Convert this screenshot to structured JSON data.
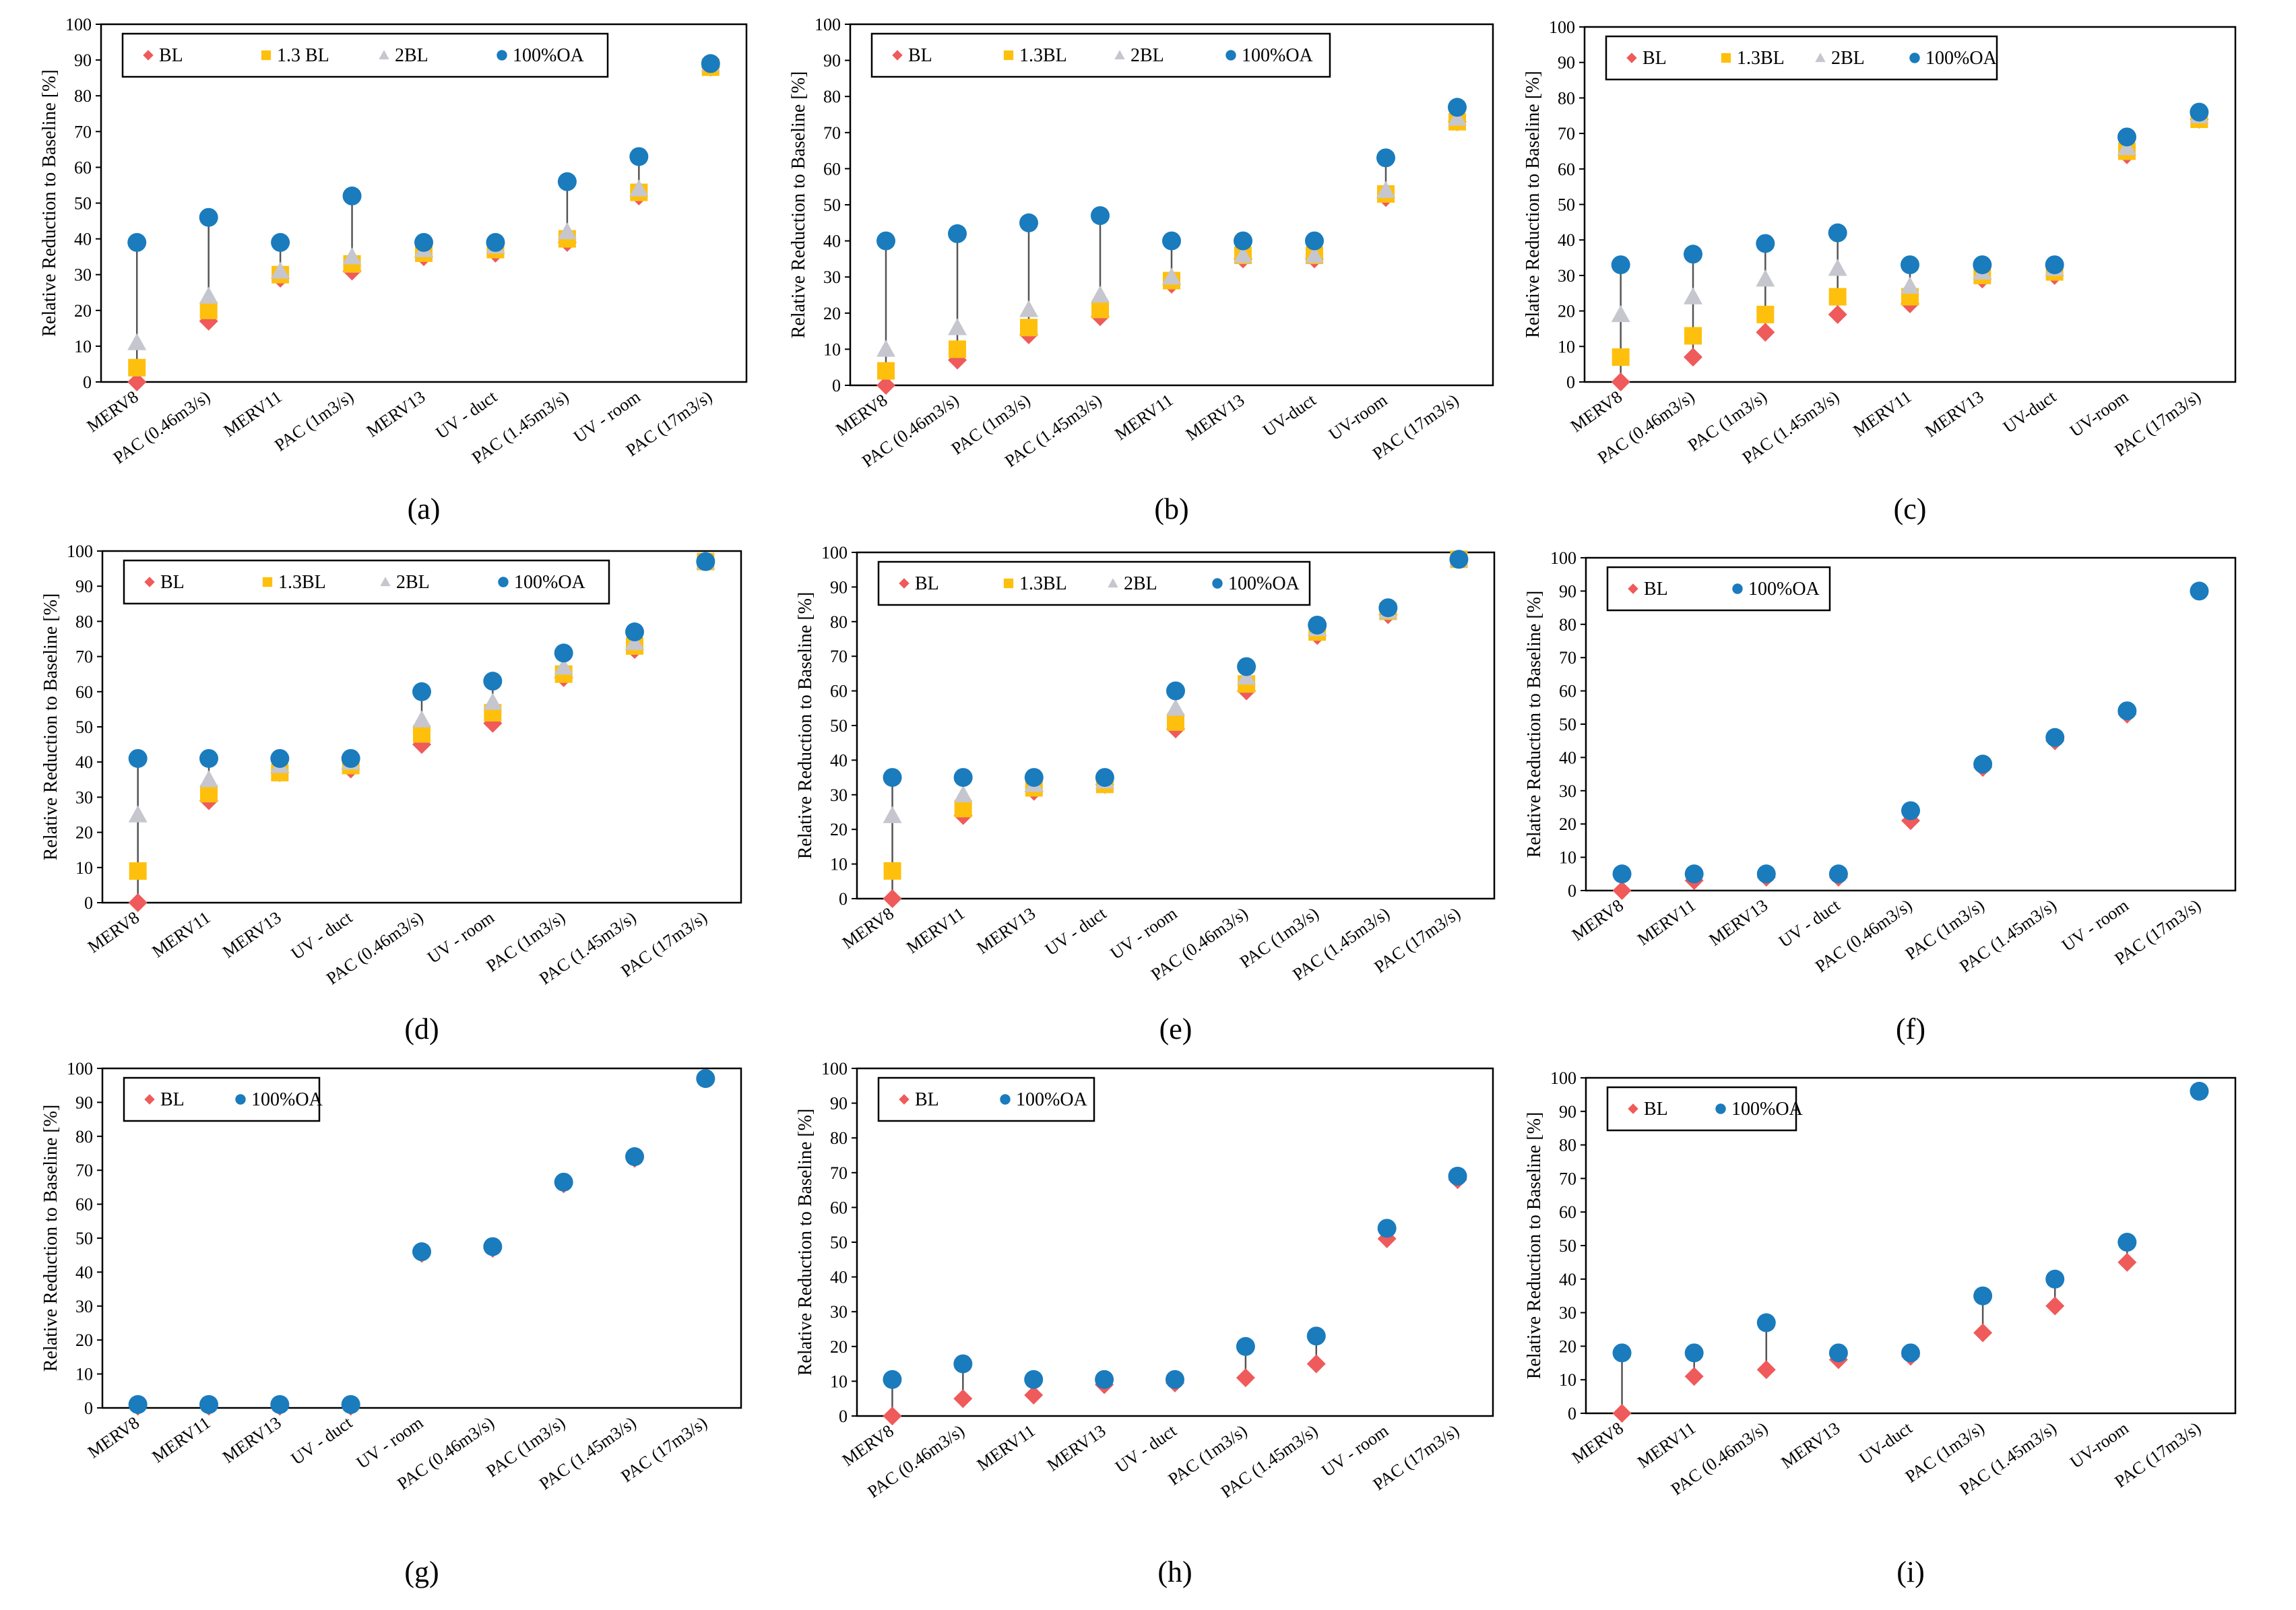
{
  "figure": {
    "colors": {
      "BL": "#ef5a5a",
      "1.3BL": "#fec00d",
      "2BL": "#c6c6ce",
      "100%OA": "#1a7bbd",
      "frame": "#000000",
      "connector": "#555555"
    }
  },
  "chart_data": [
    {
      "id": "a",
      "caption": "(a)",
      "type": "scatter",
      "ylabel": "Relative Reduction to Baseline [%]",
      "ylim": [
        0,
        100
      ],
      "yticks": [
        "0",
        "10",
        "20",
        "30",
        "40",
        "50",
        "60",
        "70",
        "80",
        "90",
        "100"
      ],
      "categories": [
        "MERV8",
        "PAC (0.46m3/s)",
        "MERV11",
        "PAC (1m3/s)",
        "MERV13",
        "UV - duct",
        "PAC (1.45m3/s)",
        "UV - room",
        "PAC (17m3/s)"
      ],
      "series": [
        {
          "name": "BL",
          "label": "BL",
          "marker": "diamond",
          "values": [
            0,
            17,
            29,
            31,
            35,
            36,
            39,
            52,
            88
          ]
        },
        {
          "name": "1.3BL",
          "label": "1.3 BL",
          "marker": "square",
          "values": [
            4,
            20,
            30,
            33,
            36,
            37,
            40,
            53,
            88
          ]
        },
        {
          "name": "2BL",
          "label": "2BL",
          "marker": "triangle",
          "values": [
            11,
            24,
            31,
            35,
            37,
            38,
            42,
            54,
            89
          ]
        },
        {
          "name": "100%OA",
          "label": "100%OA",
          "marker": "circle",
          "values": [
            39,
            46,
            39,
            52,
            39,
            39,
            56,
            63,
            89
          ]
        }
      ]
    },
    {
      "id": "b",
      "caption": "(b)",
      "type": "scatter",
      "ylabel": "Relative Reduction to Baseline [%]",
      "ylim": [
        0,
        100
      ],
      "yticks": [
        "0",
        "10",
        "20",
        "30",
        "40",
        "50",
        "60",
        "70",
        "80",
        "90",
        "100"
      ],
      "categories": [
        "MERV8",
        "PAC (0.46m3/s)",
        "PAC (1m3/s)",
        "PAC (1.45m3/s)",
        "MERV11",
        "MERV13",
        "UV-duct",
        "UV-room",
        "PAC (17m3/s)"
      ],
      "series": [
        {
          "name": "BL",
          "label": "BL",
          "marker": "diamond",
          "values": [
            0,
            7,
            14,
            19,
            28,
            35,
            35,
            52,
            73
          ]
        },
        {
          "name": "1.3BL",
          "label": "1.3BL",
          "marker": "square",
          "values": [
            4,
            10,
            16,
            21,
            29,
            36,
            36,
            53,
            73
          ]
        },
        {
          "name": "2BL",
          "label": "2BL",
          "marker": "triangle",
          "values": [
            10,
            16,
            21,
            25,
            30,
            36,
            36,
            54,
            74
          ]
        },
        {
          "name": "100%OA",
          "label": "100%OA",
          "marker": "circle",
          "values": [
            40,
            42,
            45,
            47,
            40,
            40,
            40,
            63,
            77
          ]
        }
      ]
    },
    {
      "id": "c",
      "caption": "(c)",
      "type": "scatter",
      "ylabel": "Relative Reduction to Baseline [%]",
      "ylim": [
        0,
        100
      ],
      "yticks": [
        "0",
        "10",
        "20",
        "30",
        "40",
        "50",
        "60",
        "70",
        "80",
        "90",
        "100"
      ],
      "categories": [
        "MERV8",
        "PAC (0.46m3/s)",
        "PAC (1m3/s)",
        "PAC (1.45m3/s)",
        "MERV11",
        "MERV13",
        "UV-duct",
        "UV-room",
        "PAC (17m3/s)"
      ],
      "series": [
        {
          "name": "BL",
          "label": "BL",
          "marker": "diamond",
          "values": [
            0,
            7,
            14,
            19,
            22,
            29,
            30,
            64,
            74
          ]
        },
        {
          "name": "1.3BL",
          "label": "1.3BL",
          "marker": "square",
          "values": [
            7,
            13,
            19,
            24,
            24,
            30,
            31,
            65,
            74
          ]
        },
        {
          "name": "2BL",
          "label": "2BL",
          "marker": "triangle",
          "values": [
            19,
            24,
            29,
            32,
            27,
            31,
            32,
            66,
            75
          ]
        },
        {
          "name": "100%OA",
          "label": "100%OA",
          "marker": "circle",
          "values": [
            33,
            36,
            39,
            42,
            33,
            33,
            33,
            69,
            76
          ]
        }
      ]
    },
    {
      "id": "d",
      "caption": "(d)",
      "type": "scatter",
      "ylabel": "Relative Reduction to Baseline [%]",
      "ylim": [
        0,
        100
      ],
      "yticks": [
        "0",
        "10",
        "20",
        "30",
        "40",
        "50",
        "60",
        "70",
        "80",
        "90",
        "100"
      ],
      "categories": [
        "MERV8",
        "MERV11",
        "MERV13",
        "UV - duct",
        "PAC (0.46m3/s)",
        "UV - room",
        "PAC (1m3/s)",
        "PAC (1.45m3/s)",
        "PAC (17m3/s)"
      ],
      "series": [
        {
          "name": "BL",
          "label": "BL",
          "marker": "diamond",
          "values": [
            0,
            29,
            37,
            38,
            45,
            51,
            64,
            72,
            97
          ]
        },
        {
          "name": "1.3BL",
          "label": "1.3BL",
          "marker": "square",
          "values": [
            9,
            31,
            37,
            39,
            48,
            54,
            65,
            73,
            97
          ]
        },
        {
          "name": "2BL",
          "label": "2BL",
          "marker": "triangle",
          "values": [
            25,
            35,
            39,
            40,
            52,
            57,
            67,
            74,
            97
          ]
        },
        {
          "name": "100%OA",
          "label": "100%OA",
          "marker": "circle",
          "values": [
            41,
            41,
            41,
            41,
            60,
            63,
            71,
            77,
            97
          ]
        }
      ]
    },
    {
      "id": "e",
      "caption": "(e)",
      "type": "scatter",
      "ylabel": "Relative Reduction to Baseline [%]",
      "ylim": [
        0,
        100
      ],
      "yticks": [
        "0",
        "10",
        "20",
        "30",
        "40",
        "50",
        "60",
        "70",
        "80",
        "90",
        "100"
      ],
      "categories": [
        "MERV8",
        "MERV11",
        "MERV13",
        "UV - duct",
        "UV - room",
        "PAC (0.46m3/s)",
        "PAC (1m3/s)",
        "PAC (1.45m3/s)",
        "PAC (17m3/s)"
      ],
      "series": [
        {
          "name": "BL",
          "label": "BL",
          "marker": "diamond",
          "values": [
            0,
            24,
            31,
            33,
            49,
            60,
            76,
            82,
            98
          ]
        },
        {
          "name": "1.3BL",
          "label": "1.3BL",
          "marker": "square",
          "values": [
            8,
            26,
            32,
            33,
            51,
            62,
            77,
            83,
            98
          ]
        },
        {
          "name": "2BL",
          "label": "2BL",
          "marker": "triangle",
          "values": [
            24,
            30,
            33,
            34,
            55,
            64,
            78,
            83,
            98
          ]
        },
        {
          "name": "100%OA",
          "label": "100%OA",
          "marker": "circle",
          "values": [
            35,
            35,
            35,
            35,
            60,
            67,
            79,
            84,
            98
          ]
        }
      ]
    },
    {
      "id": "f",
      "caption": "(f)",
      "type": "scatter",
      "ylabel": "Relative Reduction to Baseline [%]",
      "ylim": [
        0,
        100
      ],
      "yticks": [
        "0",
        "10",
        "20",
        "30",
        "40",
        "50",
        "60",
        "70",
        "80",
        "90",
        "100"
      ],
      "categories": [
        "MERV8",
        "MERV11",
        "MERV13",
        "UV - duct",
        "PAC (0.46m3/s)",
        "PAC (1m3/s)",
        "PAC (1.45m3/s)",
        "UV - room",
        "PAC (17m3/s)"
      ],
      "series": [
        {
          "name": "BL",
          "label": "BL",
          "marker": "diamond",
          "values": [
            0,
            3,
            4,
            4,
            21,
            37,
            45,
            53,
            90
          ]
        },
        {
          "name": "100%OA",
          "label": "100%OA",
          "marker": "circle",
          "values": [
            5,
            5,
            5,
            5,
            24,
            38,
            46,
            54,
            90
          ]
        }
      ]
    },
    {
      "id": "g",
      "caption": "(g)",
      "type": "scatter",
      "ylabel": "Relative Reduction to Baseline [%]",
      "ylim": [
        0,
        100
      ],
      "yticks": [
        "0",
        "10",
        "20",
        "30",
        "40",
        "50",
        "60",
        "70",
        "80",
        "90",
        "100"
      ],
      "categories": [
        "MERV8",
        "MERV11",
        "MERV13",
        "UV - duct",
        "UV - room",
        "PAC (0.46m3/s)",
        "PAC (1m3/s)",
        "PAC (1.45m3/s)",
        "PAC (17m3/s)"
      ],
      "series": [
        {
          "name": "BL",
          "label": "BL",
          "marker": "diamond",
          "values": [
            0.5,
            0.5,
            0.5,
            0.5,
            45.5,
            47,
            66,
            73.5,
            97
          ]
        },
        {
          "name": "100%OA",
          "label": "100%OA",
          "marker": "circle",
          "values": [
            1,
            1,
            1,
            1,
            46,
            47.5,
            66.5,
            74,
            97
          ]
        }
      ]
    },
    {
      "id": "h",
      "caption": "(h)",
      "type": "scatter",
      "ylabel": "Relative Reduction to Baseline [%]",
      "ylim": [
        0,
        100
      ],
      "yticks": [
        "0",
        "10",
        "20",
        "30",
        "40",
        "50",
        "60",
        "70",
        "80",
        "90",
        "100"
      ],
      "categories": [
        "MERV8",
        "PAC (0.46m3/s)",
        "MERV11",
        "MERV13",
        "UV - duct",
        "PAC (1m3/s)",
        "PAC (1.45m3/s)",
        "UV - room",
        "PAC (17m3/s)"
      ],
      "series": [
        {
          "name": "BL",
          "label": "BL",
          "marker": "diamond",
          "values": [
            0,
            5,
            6,
            9,
            9.5,
            11,
            15,
            51,
            68
          ]
        },
        {
          "name": "100%OA",
          "label": "100%OA",
          "marker": "circle",
          "values": [
            10.5,
            15,
            10.5,
            10.5,
            10.5,
            20,
            23,
            54,
            69
          ]
        }
      ]
    },
    {
      "id": "i",
      "caption": "(i)",
      "type": "scatter",
      "ylabel": "Relative Reduction to Baseline [%]",
      "ylim": [
        0,
        100
      ],
      "yticks": [
        "0",
        "10",
        "20",
        "30",
        "40",
        "50",
        "60",
        "70",
        "80",
        "90",
        "100"
      ],
      "categories": [
        "MERV8",
        "MERV11",
        "PAC (0.46m3/s)",
        "MERV13",
        "UV-duct",
        "PAC (1m3/s)",
        "PAC (1.45m3/s)",
        "UV-room",
        "PAC (17m3/s)"
      ],
      "series": [
        {
          "name": "BL",
          "label": "BL",
          "marker": "diamond",
          "values": [
            0,
            11,
            13,
            16,
            17,
            24,
            32,
            45,
            96
          ]
        },
        {
          "name": "100%OA",
          "label": "100%OA",
          "marker": "circle",
          "values": [
            18,
            18,
            27,
            18,
            18,
            35,
            40,
            51,
            96
          ]
        }
      ]
    }
  ]
}
